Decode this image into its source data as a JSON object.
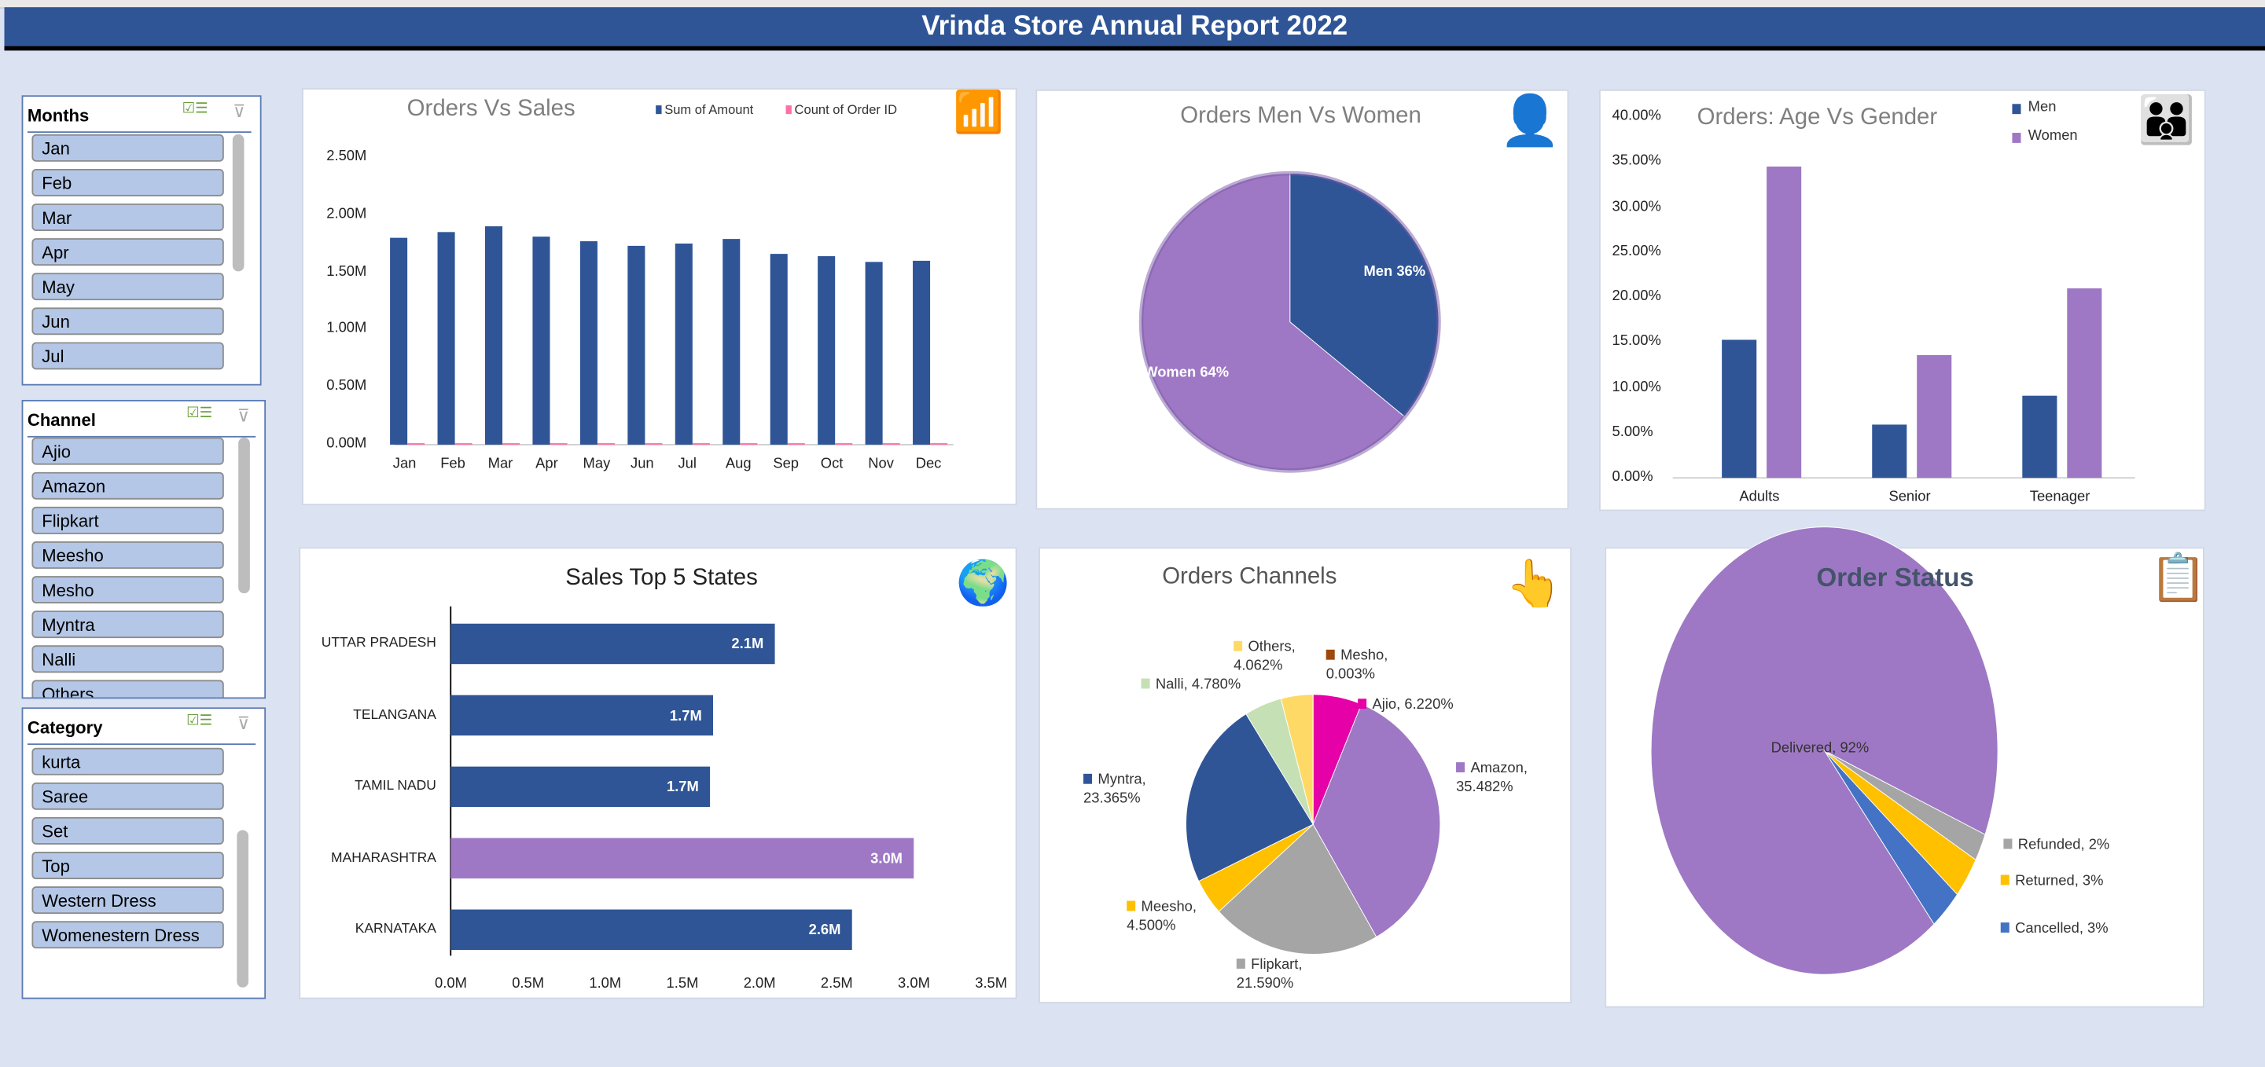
{
  "title": "Vrinda Store Annual Report 2022",
  "colors": {
    "blue": "#2f5597",
    "purple": "#9e78c4",
    "grey": "#a5a5a5",
    "yellow": "#ffc000",
    "magenta": "#e600a8",
    "lightgreen": "#c5e0b4",
    "lightyellow": "#ffd966",
    "brown": "#9e480e",
    "cancelled": "#4472c4",
    "background": "#dbe2f1"
  },
  "slicers": {
    "months": {
      "title": "Months",
      "items": [
        "Jan",
        "Feb",
        "Mar",
        "Apr",
        "May",
        "Jun",
        "Jul"
      ]
    },
    "channel": {
      "title": "Channel",
      "items": [
        "Ajio",
        "Amazon",
        "Flipkart",
        "Meesho",
        "Mesho",
        "Myntra",
        "Nalli",
        "Others"
      ]
    },
    "category": {
      "title": "Category",
      "items": [
        "kurta",
        "Saree",
        "Set",
        "Top",
        "Western Dress",
        "Womenestern Dress"
      ]
    },
    "icons": [
      "multi-select-icon",
      "clear-filter-icon"
    ]
  },
  "chart_data": [
    {
      "id": "orders_vs_sales",
      "type": "bar",
      "title": "Orders Vs Sales",
      "icon": "growth-chart-icon",
      "categories": [
        "Jan",
        "Feb",
        "Mar",
        "Apr",
        "May",
        "Jun",
        "Jul",
        "Aug",
        "Sep",
        "Oct",
        "Nov",
        "Dec"
      ],
      "series": [
        {
          "name": "Sum of Amount",
          "color": "#2f5597",
          "values": [
            1.8,
            1.85,
            1.9,
            1.81,
            1.77,
            1.73,
            1.75,
            1.79,
            1.66,
            1.64,
            1.59,
            1.6
          ]
        },
        {
          "name": "Count of Order ID",
          "color": "#ff6fa8",
          "values": [
            0,
            0,
            0,
            0,
            0,
            0,
            0,
            0,
            0,
            0,
            0,
            0
          ]
        }
      ],
      "yticks": [
        "0.00M",
        "0.50M",
        "1.00M",
        "1.50M",
        "2.00M",
        "2.50M"
      ],
      "ylim": [
        0,
        2.5
      ],
      "unit": "M",
      "legend": "top"
    },
    {
      "id": "men_vs_women",
      "type": "pie",
      "title": "Orders Men Vs Women",
      "icon": "person-icon",
      "slices": [
        {
          "label": "Men 36%",
          "value": 36,
          "color": "#2f5597"
        },
        {
          "label": "Women 64%",
          "value": 64,
          "color": "#9e78c4"
        }
      ]
    },
    {
      "id": "age_vs_gender",
      "type": "bar",
      "title": "Orders: Age Vs Gender",
      "icon": "family-icon",
      "categories": [
        "Adults",
        "Senior",
        "Teenager"
      ],
      "series": [
        {
          "name": "Men",
          "color": "#2f5597",
          "values": [
            15.3,
            5.9,
            9.1
          ]
        },
        {
          "name": "Women",
          "color": "#9e78c4",
          "values": [
            34.5,
            13.6,
            21.0
          ]
        }
      ],
      "yticks": [
        "0.00%",
        "5.00%",
        "10.00%",
        "15.00%",
        "20.00%",
        "25.00%",
        "30.00%",
        "35.00%",
        "40.00%"
      ],
      "ylim": [
        0,
        40
      ],
      "legend": "top-right"
    },
    {
      "id": "top_states",
      "type": "bar",
      "orientation": "horizontal",
      "title": "Sales Top 5 States",
      "icon": "globe-icon",
      "categories": [
        "UTTAR PRADESH",
        "TELANGANA",
        "TAMIL NADU",
        "MAHARASHTRA",
        "KARNATAKA"
      ],
      "values": [
        2.1,
        1.7,
        1.68,
        3.0,
        2.6
      ],
      "labels": [
        "2.1M",
        "1.7M",
        "1.7M",
        "3.0M",
        "2.6M"
      ],
      "colors": [
        "#2f5597",
        "#2f5597",
        "#2f5597",
        "#9e78c4",
        "#2f5597"
      ],
      "xticks": [
        "0.0M",
        "0.5M",
        "1.0M",
        "1.5M",
        "2.0M",
        "2.5M",
        "3.0M",
        "3.5M"
      ],
      "xlim": [
        0,
        3.5
      ]
    },
    {
      "id": "channels",
      "type": "pie",
      "title": "Orders Channels",
      "icon": "touch-network-icon",
      "slices": [
        {
          "label": "Ajio, 6.220%",
          "value": 6.22,
          "color": "#e600a8"
        },
        {
          "label": "Amazon, 35.482%",
          "value": 35.482,
          "color": "#9e78c4"
        },
        {
          "label": "Flipkart, 21.590%",
          "value": 21.59,
          "color": "#a5a5a5"
        },
        {
          "label": "Meesho, 4.500%",
          "value": 4.5,
          "color": "#ffc000"
        },
        {
          "label": "Myntra, 23.365%",
          "value": 23.365,
          "color": "#2f5597"
        },
        {
          "label": "Nalli, 4.780%",
          "value": 4.78,
          "color": "#c5e0b4"
        },
        {
          "label": "Others, 4.062%",
          "value": 4.062,
          "color": "#ffd966"
        },
        {
          "label": "Mesho, 0.003%",
          "value": 0.003,
          "color": "#9e480e"
        }
      ]
    },
    {
      "id": "order_status",
      "type": "pie",
      "title": "Order Status",
      "icon": "clipboard-checklist-icon",
      "slices": [
        {
          "label": "Refunded, 2%",
          "value": 2,
          "color": "#a5a5a5"
        },
        {
          "label": "Returned, 3%",
          "value": 3,
          "color": "#ffc000"
        },
        {
          "label": "Cancelled, 3%",
          "value": 3,
          "color": "#4472c4"
        },
        {
          "label": "Delivered, 92%",
          "value": 92,
          "color": "#9e78c4"
        }
      ]
    }
  ]
}
